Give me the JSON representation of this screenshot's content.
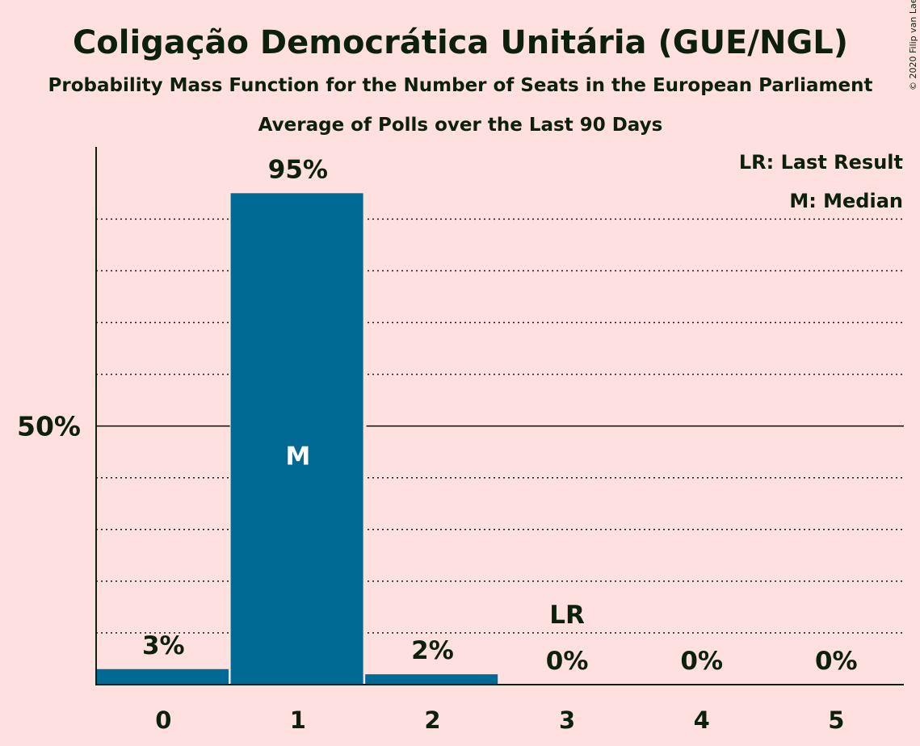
{
  "title": "Coligação Democrática Unitária (GUE/NGL)",
  "subtitle": "Probability Mass Function for the Number of Seats in the European Parliament",
  "subtitle2": "Average of Polls over the Last 90 Days",
  "credit": "© 2020 Filip van Laenen",
  "legend": {
    "lr": "LR: Last Result",
    "m": "M: Median"
  },
  "colors": {
    "background": "#ffe0e0",
    "bar": "#006994",
    "text": "#0d1f0d"
  },
  "chart_data": {
    "type": "bar",
    "categories": [
      "0",
      "1",
      "2",
      "3",
      "4",
      "5"
    ],
    "values": [
      3,
      95,
      2,
      0,
      0,
      0
    ],
    "value_labels": [
      "3%",
      "95%",
      "2%",
      "0%",
      "0%",
      "0%"
    ],
    "ylim": [
      0,
      100
    ],
    "y_ticks": [
      {
        "value": 50,
        "label": "50%"
      }
    ],
    "gridlines": [
      10,
      20,
      30,
      40,
      50,
      60,
      70,
      80,
      90
    ],
    "median_index": 1,
    "median_label": "M",
    "last_result_index": 3,
    "last_result_label": "LR"
  }
}
